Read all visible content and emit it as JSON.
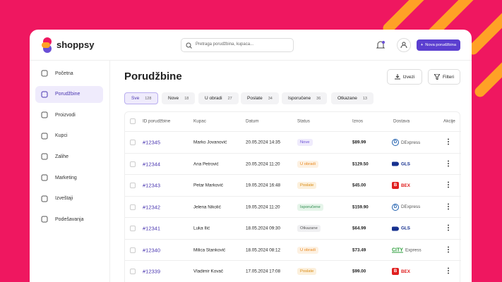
{
  "brand": "shoppsy",
  "search_placeholder": "Pretraga porudžbina, kupaca...",
  "new_order": "Nova porudžbina",
  "nav": [
    "Početna",
    "Porudžbine",
    "Proizvodi",
    "Kupci",
    "Zalihe",
    "Marketing",
    "Izveštaji",
    "Podešavanja"
  ],
  "title": "Porudžbine",
  "buttons": [
    "Izvezi",
    "Filteri"
  ],
  "tabs": [
    {
      "label": "Sve",
      "count": "128"
    },
    {
      "label": "Nove",
      "count": "18"
    },
    {
      "label": "U obradi",
      "count": "27"
    },
    {
      "label": "Poslate",
      "count": "34"
    },
    {
      "label": "Isporučene",
      "count": "36"
    },
    {
      "label": "Otkazane",
      "count": "13"
    }
  ],
  "table": {
    "headers": [
      "ID porudžbine",
      "Kupac",
      "Datum",
      "Status",
      "Iznos",
      "Dostava",
      "Akcije"
    ],
    "rows": [
      {
        "id": "#12345",
        "customer": "Marko Jovanović",
        "date": "20.05.2024 14:35",
        "status": {
          "text": "Nove",
          "color": "#6a4fd6",
          "bg": "#efebfc"
        },
        "amount": "$89.99",
        "delivery": {
          "logo": "D",
          "name": "DExpress",
          "color": "#1f5fae"
        }
      },
      {
        "id": "#12344",
        "customer": "Ana Petrović",
        "date": "20.05.2024 11:20",
        "status": {
          "text": "U obradi",
          "color": "#e8871c",
          "bg": "#fdf1e2"
        },
        "amount": "$129.50",
        "delivery": {
          "name": "GLS",
          "color": "#17318f"
        }
      },
      {
        "id": "#12343",
        "customer": "Petar Marković",
        "date": "19.05.2024 16:48",
        "status": {
          "text": "Poslate",
          "color": "#d98a12",
          "bg": "#fcf0dc"
        },
        "amount": "$45.00",
        "delivery": {
          "logo": "B",
          "name": "BEX",
          "color": "#e02020"
        }
      },
      {
        "id": "#12342",
        "customer": "Jelena Nikolić",
        "date": "19.05.2024 11:20",
        "status": {
          "text": "Isporučene",
          "color": "#2e8a4e",
          "bg": "#e6f5ea"
        },
        "amount": "$159.90",
        "delivery": {
          "logo": "D",
          "name": "DExpress",
          "color": "#1f5fae"
        }
      },
      {
        "id": "#12341",
        "customer": "Luka Ilić",
        "date": "18.05.2024 09:30",
        "status": {
          "text": "Otkazane",
          "color": "#555",
          "bg": "#f0f0f2"
        },
        "amount": "$64.99",
        "delivery": {
          "name": "GLS",
          "color": "#17318f"
        }
      },
      {
        "id": "#12340",
        "customer": "Milica Stanković",
        "date": "18.05.2024 08:12",
        "status": {
          "text": "U obradi",
          "color": "#e8871c",
          "bg": "#fdf1e2"
        },
        "amount": "$73.49",
        "delivery": {
          "logo": "CITY",
          "name": "Express",
          "color": "#2a9d3a"
        }
      },
      {
        "id": "#12339",
        "customer": "Vladimir Kovač",
        "date": "17.05.2024 17:08",
        "status": {
          "text": "Poslate",
          "color": "#d98a12",
          "bg": "#fcf0dc"
        },
        "amount": "$99.00",
        "delivery": {
          "logo": "B",
          "name": "BEX",
          "color": "#e02020"
        }
      }
    ]
  }
}
